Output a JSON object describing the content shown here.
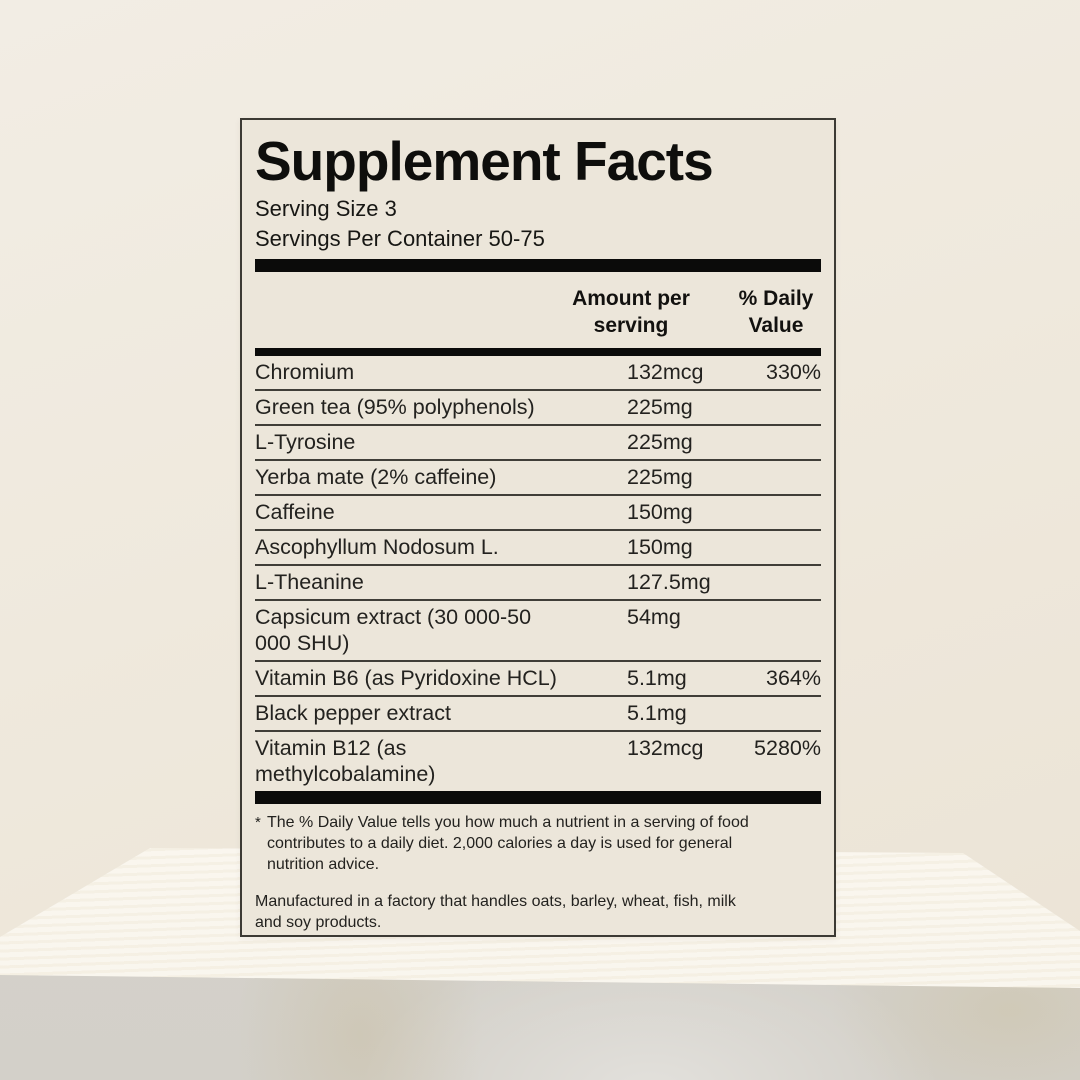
{
  "label": {
    "title": "Supplement Facts",
    "serving_size": "Serving Size 3",
    "servings_per_container": "Servings Per Container 50-75",
    "columns": {
      "amount": "Amount per\nserving",
      "daily_value": "% Daily\nValue"
    },
    "rows": [
      {
        "name": "Chromium",
        "amount": "132mcg",
        "dv": "330%"
      },
      {
        "name": "Green tea (95% polyphenols)",
        "amount": "225mg",
        "dv": ""
      },
      {
        "name": "L-Tyrosine",
        "amount": "225mg",
        "dv": ""
      },
      {
        "name": "Yerba mate (2% caffeine)",
        "amount": "225mg",
        "dv": ""
      },
      {
        "name": "Caffeine",
        "amount": "150mg",
        "dv": ""
      },
      {
        "name": "Ascophyllum Nodosum L.",
        "amount": "150mg",
        "dv": ""
      },
      {
        "name": "L-Theanine",
        "amount": "127.5mg",
        "dv": ""
      },
      {
        "name": "Capsicum extract (30 000-50\n000 SHU)",
        "amount": "54mg",
        "dv": ""
      },
      {
        "name": "Vitamin B6 (as Pyridoxine HCL)",
        "amount": "5.1mg",
        "dv": "364%"
      },
      {
        "name": "Black pepper extract",
        "amount": "5.1mg",
        "dv": ""
      },
      {
        "name": "Vitamin B12 (as\nmethylcobalamine)",
        "amount": "132mcg",
        "dv": "5280%"
      }
    ],
    "footnote_marker": "*",
    "footnote": "The % Daily Value tells you how much a nutrient in a serving of food\ncontributes to a daily diet. 2,000 calories a day is used for general\nnutrition advice.",
    "allergen_note": "Manufactured in a factory that handles oats, barley, wheat, fish, milk\nand soy products."
  },
  "colors": {
    "wall": "#efe9dd",
    "label_background": "#ece6da",
    "label_border": "#3c3a34",
    "thick_bar": "#0b0b0a",
    "row_divider": "#403e38",
    "text": "#1c1b18",
    "tabletop": "#f7f2e7",
    "table_front": "#d6d3cc"
  }
}
